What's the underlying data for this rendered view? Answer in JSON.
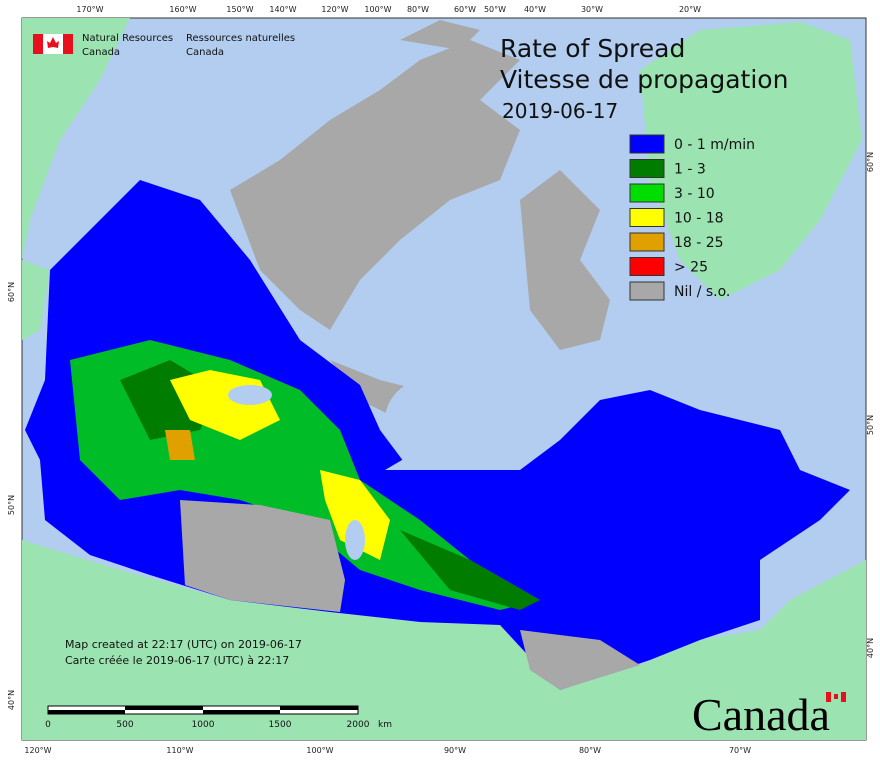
{
  "header": {
    "en_line1": "Natural Resources",
    "en_line2": "Canada",
    "fr_line1": "Ressources naturelles",
    "fr_line2": "Canada"
  },
  "title": {
    "line1": "Rate of Spread",
    "line2": "Vitesse de propagation",
    "date": "2019-06-17"
  },
  "legend": {
    "items": [
      {
        "label": "0 - 1 m/min",
        "color": "#0000ff"
      },
      {
        "label": "1 - 3",
        "color": "#007d00"
      },
      {
        "label": "3 - 10",
        "color": "#00dd00"
      },
      {
        "label": "10 - 18",
        "color": "#ffff00"
      },
      {
        "label": "18 - 25",
        "color": "#e0a000"
      },
      {
        "label": "> 25",
        "color": "#ff0000"
      },
      {
        "label": "Nil / s.o.",
        "color": "#a8a8a8"
      }
    ]
  },
  "axes": {
    "top": [
      "170°W",
      "160°W",
      "150°W",
      "140°W",
      "120°W",
      "100°W",
      "80°W",
      "60°W",
      "50°W",
      "40°W",
      "30°W",
      "20°W"
    ],
    "bottom": [
      "120°W",
      "110°W",
      "100°W",
      "90°W",
      "80°W",
      "70°W"
    ],
    "left": [
      "60°N",
      "50°N",
      "40°N"
    ],
    "right": [
      "60°N",
      "50°N",
      "40°N"
    ]
  },
  "footer": {
    "line_en": "Map created at 22:17 (UTC) on 2019-06-17",
    "line_fr": "Carte créée le 2019-06-17 (UTC) à 22:17"
  },
  "scale_bar": {
    "labels": [
      "0",
      "500",
      "1000",
      "1500",
      "2000"
    ],
    "unit": "km"
  },
  "wordmark": "Canada"
}
